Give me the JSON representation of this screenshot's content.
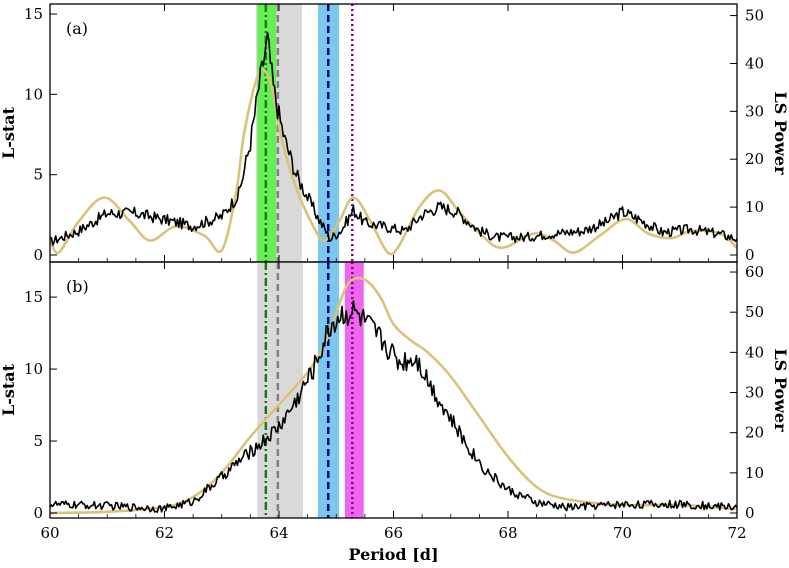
{
  "chart_data": [
    {
      "type": "line",
      "panel_label": "(a)",
      "xlabel": "Period [d]",
      "ylabel_left": "L-stat",
      "ylabel_right": "LS Power",
      "xlim": [
        60,
        72
      ],
      "ylim_left": [
        0,
        15.5
      ],
      "ylim_right": [
        0,
        52
      ],
      "x_ticks": [
        "60",
        "62",
        "64",
        "66",
        "68",
        "70",
        "72"
      ],
      "y_ticks_left": [
        "0",
        "5",
        "10",
        "15"
      ],
      "y_ticks_right": [
        "0",
        "10",
        "20",
        "30",
        "40",
        "50"
      ],
      "shaded_bands": [
        {
          "x0": 63.6,
          "x1": 64.4,
          "color": "#d9d9d9"
        },
        {
          "x0": 63.62,
          "x1": 63.95,
          "color": "#66ee55"
        },
        {
          "x0": 64.68,
          "x1": 65.05,
          "color": "#7cc8ec"
        }
      ],
      "vertical_lines": [
        {
          "x": 63.77,
          "color": "#1a7a1a",
          "style": "dashdot"
        },
        {
          "x": 63.98,
          "color": "#808080",
          "style": "dashed"
        },
        {
          "x": 64.86,
          "color": "#00008b",
          "style": "dashed"
        },
        {
          "x": 65.28,
          "color": "#800080",
          "style": "dotted"
        }
      ],
      "series": [
        {
          "axis": "left",
          "color": "#000000",
          "x": [
            60.0,
            60.5,
            61.0,
            61.5,
            62.0,
            62.5,
            63.0,
            63.3,
            63.5,
            63.65,
            63.75,
            63.8,
            63.9,
            64.0,
            64.1,
            64.3,
            64.5,
            64.7,
            64.9,
            65.1,
            65.3,
            65.5,
            65.8,
            66.2,
            66.5,
            66.8,
            67.1,
            67.5,
            67.8,
            68.3,
            68.7,
            69.3,
            69.7,
            70.0,
            70.3,
            70.7,
            71.2,
            71.7,
            72.0
          ],
          "y": [
            0.8,
            1.5,
            2.6,
            2.6,
            2.2,
            1.8,
            2.4,
            3.8,
            7.0,
            10.5,
            12.5,
            13.4,
            10.5,
            8.7,
            7.2,
            5.0,
            3.6,
            2.2,
            1.0,
            1.6,
            2.8,
            2.0,
            1.8,
            1.5,
            2.5,
            3.0,
            2.7,
            1.5,
            1.1,
            1.1,
            1.3,
            1.5,
            2.0,
            2.7,
            2.2,
            1.4,
            1.6,
            1.3,
            1.0
          ]
        },
        {
          "axis": "right",
          "color": "#d9c37a",
          "x": [
            60.0,
            60.15,
            60.5,
            60.95,
            61.4,
            61.75,
            62.2,
            62.7,
            63.0,
            63.25,
            63.4,
            63.65,
            63.85,
            64.05,
            64.3,
            64.6,
            64.8,
            65.05,
            65.3,
            65.6,
            65.9,
            66.1,
            66.45,
            66.8,
            67.15,
            67.55,
            67.9,
            68.45,
            68.8,
            69.15,
            69.6,
            70.05,
            70.45,
            70.85,
            71.2,
            71.7,
            72.0
          ],
          "y": [
            3.5,
            0.5,
            7.0,
            12.0,
            7.0,
            3.0,
            6.0,
            4.0,
            1.0,
            13.0,
            26.0,
            38.0,
            36.0,
            24.0,
            14.0,
            6.0,
            3.0,
            7.0,
            12.0,
            7.0,
            0.5,
            2.0,
            10.0,
            13.5,
            9.0,
            4.0,
            1.5,
            4.5,
            3.0,
            0.5,
            4.0,
            7.5,
            4.5,
            3.5,
            5.0,
            4.5,
            1.5
          ]
        }
      ]
    },
    {
      "type": "line",
      "panel_label": "(b)",
      "xlabel": "Period [d]",
      "ylabel_left": "L-stat",
      "ylabel_right": "LS Power",
      "xlim": [
        60,
        72
      ],
      "ylim_left": [
        0,
        17.3
      ],
      "ylim_right": [
        0,
        62
      ],
      "x_ticks": [
        "60",
        "62",
        "64",
        "66",
        "68",
        "70",
        "72"
      ],
      "y_ticks_left": [
        "0",
        "5",
        "10",
        "15"
      ],
      "y_ticks_right": [
        "0",
        "10",
        "20",
        "30",
        "40",
        "50",
        "60"
      ],
      "shaded_bands": [
        {
          "x0": 63.62,
          "x1": 64.42,
          "color": "#d9d9d9"
        },
        {
          "x0": 64.68,
          "x1": 65.05,
          "color": "#7cc8ec"
        },
        {
          "x0": 65.15,
          "x1": 65.48,
          "color": "#ee66ee"
        }
      ],
      "vertical_lines": [
        {
          "x": 63.77,
          "color": "#1a7a1a",
          "style": "dashdot"
        },
        {
          "x": 63.98,
          "color": "#808080",
          "style": "dashed"
        },
        {
          "x": 64.86,
          "color": "#00008b",
          "style": "dashed"
        },
        {
          "x": 65.28,
          "color": "#800080",
          "style": "dotted"
        }
      ],
      "series": [
        {
          "axis": "left",
          "color": "#000000",
          "x": [
            60.0,
            61.0,
            62.0,
            62.5,
            63.0,
            63.3,
            63.7,
            64.0,
            64.3,
            64.6,
            64.9,
            65.1,
            65.3,
            65.5,
            65.8,
            66.1,
            66.4,
            66.7,
            67.0,
            67.3,
            67.6,
            68.0,
            68.5,
            69.0,
            70.0,
            71.0,
            72.0
          ],
          "y": [
            0.6,
            0.5,
            0.3,
            0.8,
            2.5,
            3.6,
            4.9,
            6.0,
            7.8,
            10.0,
            13.0,
            13.8,
            14.0,
            13.3,
            12.0,
            10.5,
            10.8,
            8.5,
            6.5,
            4.6,
            3.0,
            1.6,
            0.7,
            0.4,
            0.6,
            0.6,
            0.4
          ]
        },
        {
          "axis": "right",
          "color": "#d9c37a",
          "x": [
            60.0,
            61.0,
            62.0,
            62.5,
            63.0,
            63.5,
            64.0,
            64.5,
            64.8,
            65.0,
            65.2,
            65.4,
            65.6,
            65.8,
            66.0,
            66.3,
            66.6,
            67.0,
            67.5,
            68.0,
            68.5,
            69.0,
            70.0,
            71.0,
            72.0
          ],
          "y": [
            0.0,
            0.3,
            1.5,
            4.0,
            10.0,
            19.0,
            27.0,
            35.0,
            42.0,
            50.0,
            57.0,
            58.5,
            57.0,
            53.0,
            47.0,
            43.0,
            40.0,
            34.0,
            24.0,
            14.0,
            6.5,
            3.5,
            2.0,
            2.0,
            1.0
          ]
        }
      ]
    }
  ]
}
